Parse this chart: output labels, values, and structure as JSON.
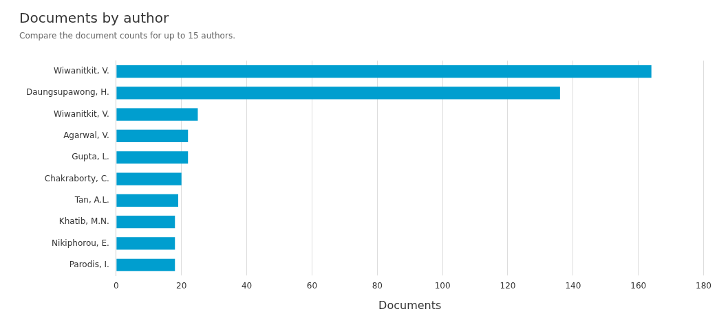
{
  "chart_data": {
    "type": "bar",
    "orientation": "horizontal",
    "title": "Documents by author",
    "subtitle": "Compare the document counts for up to 15 authors.",
    "xlabel": "Documents",
    "categories": [
      "Wiwanitkit, V.",
      "Daungsupawong, H.",
      "Wiwanitkit, V.",
      "Agarwal, V.",
      "Gupta, L.",
      "Chakraborty, C.",
      "Tan, A.L.",
      "Khatib, M.N.",
      "Nikiphorou, E.",
      "Parodis, I."
    ],
    "values": [
      164,
      136,
      25,
      22,
      22,
      20,
      19,
      18,
      18,
      18
    ],
    "color": "#009ecf",
    "xlim": [
      0,
      180
    ],
    "xticks": [
      0,
      20,
      40,
      60,
      80,
      100,
      120,
      140,
      160,
      180
    ],
    "grid": "x"
  }
}
